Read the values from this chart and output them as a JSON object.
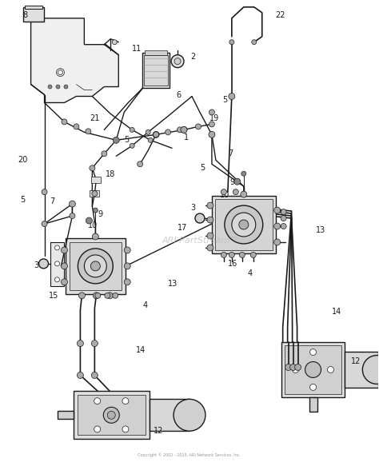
{
  "bg_color": "#ffffff",
  "line_color": "#1a1a1a",
  "text_color": "#1a1a1a",
  "watermark": "ARI PartStream™",
  "watermark_color": "#bbbbbb",
  "footer": "Copyright © 2002 - 2015, ARI Network Services, Inc.",
  "lw_main": 1.0,
  "lw_thin": 0.6,
  "lw_hose": 1.2
}
